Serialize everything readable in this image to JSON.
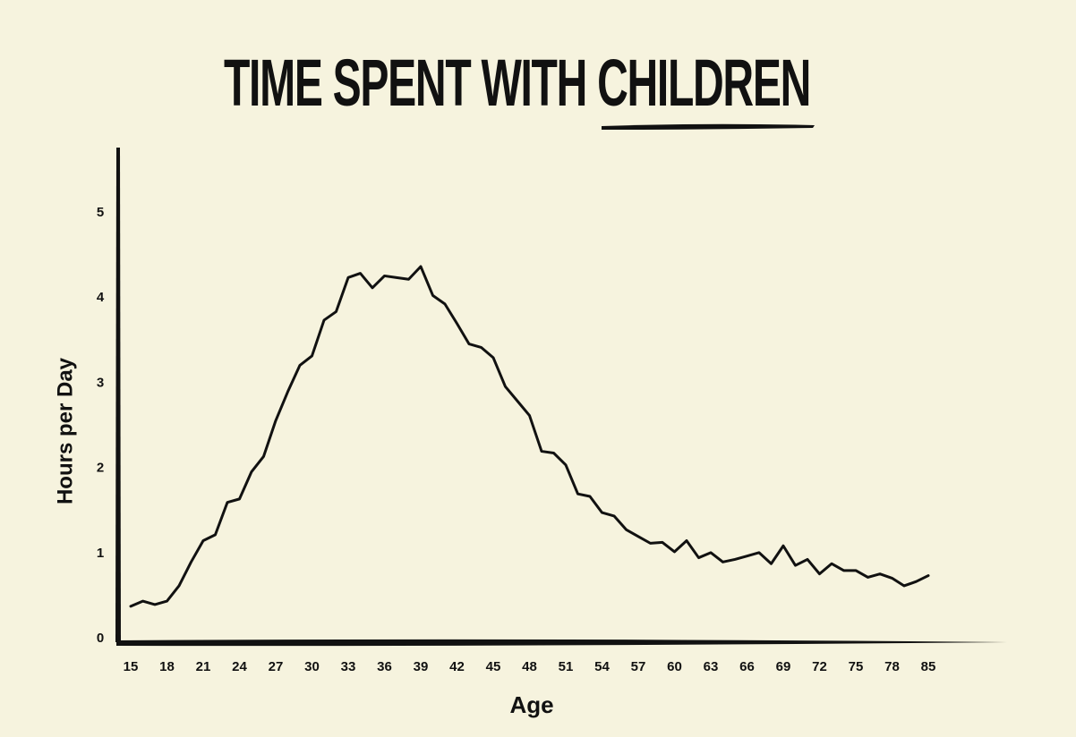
{
  "chart_data": {
    "type": "line",
    "title": "TIME SPENT WITH",
    "title_highlight": "CHILDREN",
    "x_label": "Age",
    "y_label": "Hours per Day",
    "categories": [
      "15",
      null,
      null,
      "18",
      null,
      null,
      "21",
      null,
      null,
      "24",
      null,
      null,
      "27",
      null,
      null,
      "30",
      null,
      null,
      "33",
      null,
      null,
      "36",
      null,
      null,
      "39",
      null,
      null,
      "42",
      null,
      null,
      "45",
      null,
      null,
      "48",
      null,
      null,
      "51",
      null,
      null,
      "54",
      null,
      null,
      "57",
      null,
      null,
      "60",
      null,
      null,
      "63",
      null,
      null,
      "66",
      null,
      null,
      "69",
      null,
      null,
      "72",
      null,
      null,
      "75",
      null,
      null,
      "78",
      null,
      null,
      "85"
    ],
    "series": [
      {
        "color": "#111111",
        "values": [
          0.38,
          0.44,
          0.4,
          0.44,
          0.62,
          0.9,
          1.15,
          1.22,
          1.6,
          1.64,
          1.96,
          2.14,
          2.56,
          2.9,
          3.21,
          3.32,
          3.74,
          3.84,
          4.24,
          4.29,
          4.12,
          4.26,
          4.24,
          4.22,
          4.37,
          4.03,
          3.93,
          3.7,
          3.46,
          3.42,
          3.3,
          2.96,
          2.79,
          2.62,
          2.2,
          2.18,
          2.04,
          1.7,
          1.67,
          1.48,
          1.44,
          1.28,
          1.2,
          1.12,
          1.13,
          1.02,
          1.15,
          0.95,
          1.01,
          0.9,
          0.93,
          0.97,
          1.01,
          0.88,
          1.09,
          0.86,
          0.93,
          0.76,
          0.88,
          0.8,
          0.8,
          0.72,
          0.76,
          0.71,
          0.62,
          0.67,
          0.74
        ]
      }
    ],
    "ylim": [
      0,
      5.7
    ],
    "yticks": [
      0,
      1,
      2,
      3,
      4,
      5
    ]
  }
}
